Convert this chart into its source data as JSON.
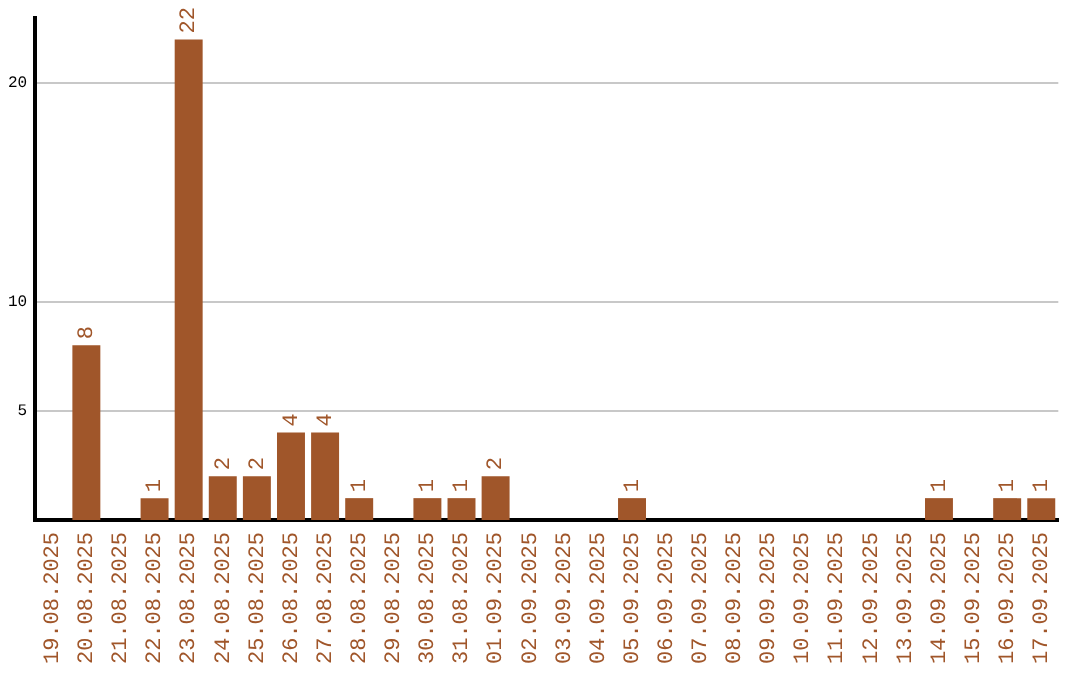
{
  "chart_data": {
    "type": "bar",
    "categories": [
      "19.08.2025",
      "20.08.2025",
      "21.08.2025",
      "22.08.2025",
      "23.08.2025",
      "24.08.2025",
      "25.08.2025",
      "26.08.2025",
      "27.08.2025",
      "28.08.2025",
      "29.08.2025",
      "30.08.2025",
      "31.08.2025",
      "01.09.2025",
      "02.09.2025",
      "03.09.2025",
      "04.09.2025",
      "05.09.2025",
      "06.09.2025",
      "07.09.2025",
      "08.09.2025",
      "09.09.2025",
      "10.09.2025",
      "11.09.2025",
      "12.09.2025",
      "13.09.2025",
      "14.09.2025",
      "15.09.2025",
      "16.09.2025",
      "17.09.2025"
    ],
    "values": [
      0,
      8,
      0,
      1,
      22,
      2,
      2,
      4,
      4,
      1,
      0,
      1,
      1,
      2,
      0,
      0,
      0,
      1,
      0,
      0,
      0,
      0,
      0,
      0,
      0,
      0,
      1,
      0,
      1,
      1
    ],
    "value_labels": [
      null,
      "8",
      null,
      "1",
      "22",
      "2",
      "2",
      "4",
      "4",
      "1",
      null,
      "1",
      "1",
      "2",
      null,
      null,
      null,
      "1",
      null,
      null,
      null,
      null,
      null,
      null,
      null,
      null,
      "1",
      null,
      "1",
      "1"
    ],
    "color": "#a0562a",
    "ylim": [
      0,
      23
    ],
    "yticks": [
      5,
      10,
      20
    ],
    "grid": "y",
    "legend": false
  }
}
